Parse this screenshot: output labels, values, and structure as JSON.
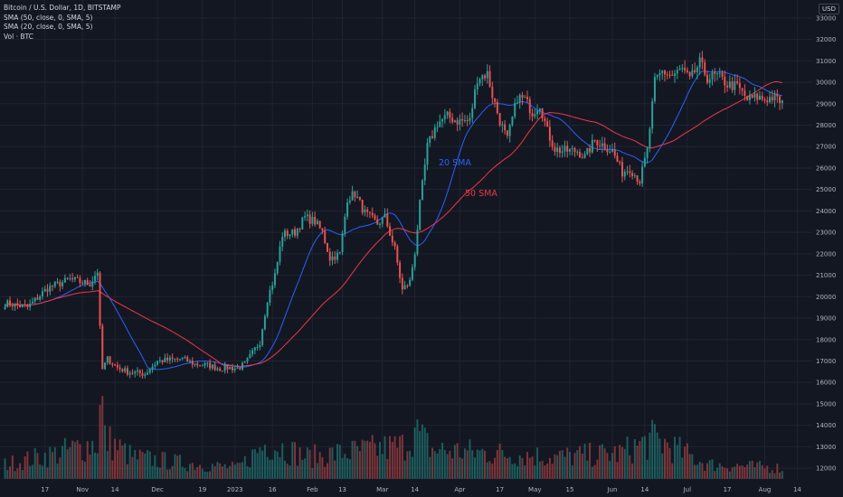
{
  "legend": {
    "symbol": "Bitcoin / U.S. Dollar, 1D, BITSTAMP",
    "sma50": "SMA (50, close, 0, SMA, 5)",
    "sma20": "SMA (20, close, 0, SMA, 5)",
    "volume": "Vol · BTC"
  },
  "currency": "USD",
  "annotations": {
    "sma20": "20 SMA",
    "sma50": "50 SMA"
  },
  "colors": {
    "background": "#131722",
    "up": "#26a69a",
    "down": "#ef5350",
    "sma20": "#2962ff",
    "sma50": "#f23645",
    "grid": "#1f2431"
  },
  "chart_data": {
    "type": "candlestick",
    "title": "Bitcoin / U.S. Dollar, 1D, BITSTAMP",
    "ylim": [
      11500,
      33500
    ],
    "y_ticks": [
      12000,
      13000,
      14000,
      15000,
      16000,
      17000,
      18000,
      19000,
      20000,
      21000,
      22000,
      23000,
      24000,
      25000,
      26000,
      27000,
      28000,
      29000,
      30000,
      31000,
      32000,
      33000
    ],
    "x_ticks": [
      "17",
      "Nov",
      "14",
      "Dec",
      "19",
      "2023",
      "16",
      "Feb",
      "13",
      "Mar",
      "14",
      "Apr",
      "17",
      "May",
      "15",
      "Jun",
      "14",
      "Jul",
      "17",
      "Aug",
      "14"
    ],
    "x_tick_days": [
      -15,
      0,
      13,
      30,
      48,
      61,
      76,
      92,
      104,
      120,
      133,
      151,
      167,
      181,
      195,
      212,
      225,
      242,
      258,
      273,
      286
    ],
    "grid": true,
    "series_key_points": [
      {
        "day": -31,
        "close": 19700
      },
      {
        "day": -22,
        "close": 19500
      },
      {
        "day": -14,
        "close": 20400
      },
      {
        "day": -5,
        "close": 20800
      },
      {
        "day": 3,
        "close": 20600
      },
      {
        "day": 6,
        "close": 21200
      },
      {
        "day": 7,
        "close": 18500
      },
      {
        "day": 8,
        "close": 16600
      },
      {
        "day": 10,
        "close": 17100
      },
      {
        "day": 14,
        "close": 16700
      },
      {
        "day": 18,
        "close": 16500
      },
      {
        "day": 25,
        "close": 16400
      },
      {
        "day": 30,
        "close": 17000
      },
      {
        "day": 40,
        "close": 17100
      },
      {
        "day": 45,
        "close": 16850
      },
      {
        "day": 50,
        "close": 16800
      },
      {
        "day": 55,
        "close": 16650
      },
      {
        "day": 58,
        "close": 16700
      },
      {
        "day": 62,
        "close": 16650
      },
      {
        "day": 65,
        "close": 16850
      },
      {
        "day": 71,
        "close": 17900
      },
      {
        "day": 74,
        "close": 19900
      },
      {
        "day": 77,
        "close": 21000
      },
      {
        "day": 80,
        "close": 22900
      },
      {
        "day": 85,
        "close": 23000
      },
      {
        "day": 89,
        "close": 23700
      },
      {
        "day": 93,
        "close": 23500
      },
      {
        "day": 96,
        "close": 23000
      },
      {
        "day": 99,
        "close": 21800
      },
      {
        "day": 103,
        "close": 22000
      },
      {
        "day": 106,
        "close": 24600
      },
      {
        "day": 109,
        "close": 24800
      },
      {
        "day": 113,
        "close": 23900
      },
      {
        "day": 118,
        "close": 23400
      },
      {
        "day": 121,
        "close": 23700
      },
      {
        "day": 125,
        "close": 22200
      },
      {
        "day": 128,
        "close": 20300
      },
      {
        "day": 131,
        "close": 20700
      },
      {
        "day": 133,
        "close": 22100
      },
      {
        "day": 135,
        "close": 24300
      },
      {
        "day": 138,
        "close": 27000
      },
      {
        "day": 142,
        "close": 28100
      },
      {
        "day": 146,
        "close": 28400
      },
      {
        "day": 150,
        "close": 28200
      },
      {
        "day": 155,
        "close": 28200
      },
      {
        "day": 158,
        "close": 30200
      },
      {
        "day": 162,
        "close": 30400
      },
      {
        "day": 164,
        "close": 29400
      },
      {
        "day": 167,
        "close": 28200
      },
      {
        "day": 170,
        "close": 27300
      },
      {
        "day": 174,
        "close": 29300
      },
      {
        "day": 177,
        "close": 29200
      },
      {
        "day": 180,
        "close": 28600
      },
      {
        "day": 183,
        "close": 29000
      },
      {
        "day": 186,
        "close": 27700
      },
      {
        "day": 189,
        "close": 26900
      },
      {
        "day": 192,
        "close": 26800
      },
      {
        "day": 198,
        "close": 26800
      },
      {
        "day": 201,
        "close": 26500
      },
      {
        "day": 205,
        "close": 27300
      },
      {
        "day": 208,
        "close": 27100
      },
      {
        "day": 212,
        "close": 26800
      },
      {
        "day": 216,
        "close": 25800
      },
      {
        "day": 219,
        "close": 26000
      },
      {
        "day": 223,
        "close": 25400
      },
      {
        "day": 226,
        "close": 26800
      },
      {
        "day": 229,
        "close": 30000
      },
      {
        "day": 232,
        "close": 30500
      },
      {
        "day": 236,
        "close": 30300
      },
      {
        "day": 240,
        "close": 30600
      },
      {
        "day": 243,
        "close": 30100
      },
      {
        "day": 247,
        "close": 30900
      },
      {
        "day": 250,
        "close": 30200
      },
      {
        "day": 254,
        "close": 30300
      },
      {
        "day": 258,
        "close": 29900
      },
      {
        "day": 262,
        "close": 29800
      },
      {
        "day": 266,
        "close": 29200
      },
      {
        "day": 270,
        "close": 29300
      },
      {
        "day": 273,
        "close": 29200
      },
      {
        "day": 276,
        "close": 29300
      },
      {
        "day": 280,
        "close": 29050
      }
    ],
    "volume_key_points": [
      {
        "day": -31,
        "volume": 0.2
      },
      {
        "day": -10,
        "volume": 0.35
      },
      {
        "day": 6,
        "volume": 0.5
      },
      {
        "day": 7,
        "volume": 0.9
      },
      {
        "day": 8,
        "volume": 1.0
      },
      {
        "day": 9,
        "volume": 0.55
      },
      {
        "day": 20,
        "volume": 0.3
      },
      {
        "day": 40,
        "volume": 0.22
      },
      {
        "day": 62,
        "volume": 0.15
      },
      {
        "day": 74,
        "volume": 0.5
      },
      {
        "day": 90,
        "volume": 0.3
      },
      {
        "day": 128,
        "volume": 0.45
      },
      {
        "day": 133,
        "volume": 0.65
      },
      {
        "day": 140,
        "volume": 0.4
      },
      {
        "day": 165,
        "volume": 0.35
      },
      {
        "day": 190,
        "volume": 0.3
      },
      {
        "day": 215,
        "volume": 0.35
      },
      {
        "day": 229,
        "volume": 0.55
      },
      {
        "day": 250,
        "volume": 0.2
      },
      {
        "day": 280,
        "volume": 0.15
      }
    ]
  }
}
